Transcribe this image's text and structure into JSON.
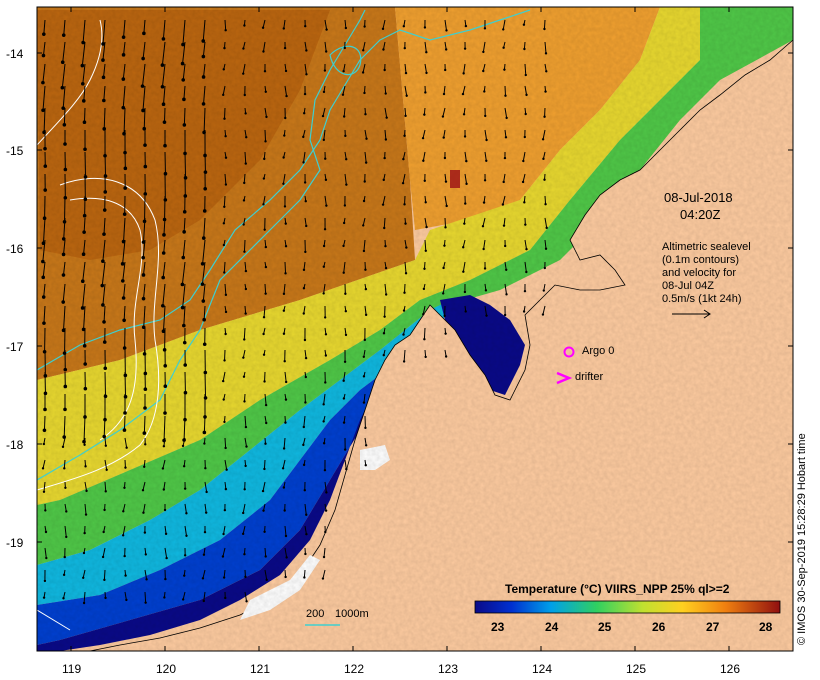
{
  "map": {
    "lat_labels": [
      "-14",
      "-15",
      "-16",
      "-17",
      "-18",
      "-19"
    ],
    "lon_labels": [
      "119",
      "120",
      "121",
      "122",
      "123",
      "124",
      "125",
      "126"
    ],
    "lat_range": [
      -20.1,
      -13.5
    ],
    "lon_range": [
      118.6,
      126.7
    ],
    "land_color": "#fdcba0",
    "contour_color": "#3fcfcf",
    "sla_contour_color": "#ffffff"
  },
  "annotations": {
    "date": "08-Jul-2018",
    "time": "04:20Z",
    "sealevel_lines": [
      "Altimetric sealevel",
      "(0.1m contours)",
      "and velocity for",
      "08-Jul 04Z",
      "0.5m/s (1kt 24h)"
    ],
    "argo_label": "Argo 0",
    "drifter_label": "drifter",
    "argo_color": "#ff00ff",
    "depth_legend_200": "200",
    "depth_legend_1000": "1000m"
  },
  "colorbar": {
    "title": "Temperature (°C) VIIRS_NPP 25% ql>=2",
    "ticks": [
      "23",
      "24",
      "25",
      "26",
      "27",
      "28"
    ],
    "colors": [
      "#0a0a88",
      "#0050e0",
      "#00b0e8",
      "#40d040",
      "#e8e030",
      "#ffb020",
      "#e06010",
      "#a01010"
    ]
  },
  "credit": "© IMOS 30-Sep-2019 15:28:29 Hobart time"
}
